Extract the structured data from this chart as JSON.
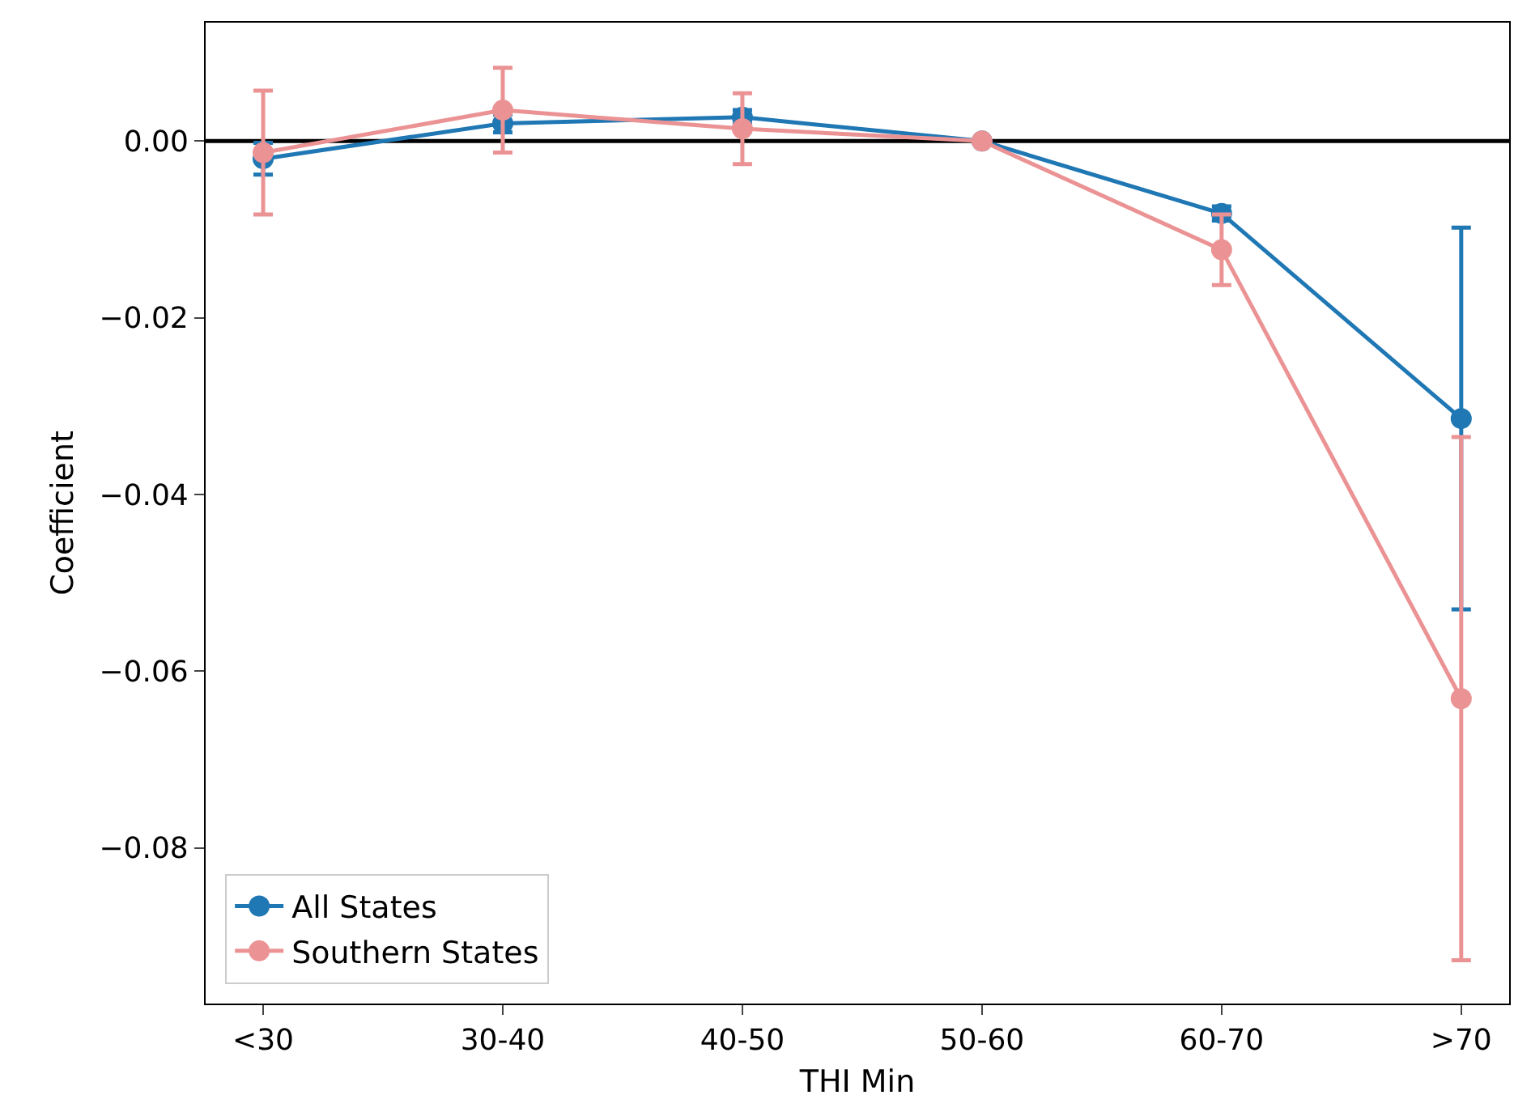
{
  "chart_data": {
    "type": "line",
    "xlabel": "THI Min",
    "ylabel": "Coefficient",
    "categories": [
      "<30",
      "30-40",
      "40-50",
      "50-60",
      "60-70",
      ">70"
    ],
    "series": [
      {
        "name": "All States",
        "color": "#1f77b4",
        "values": [
          -0.002,
          0.002,
          0.0027,
          0.0,
          -0.0082,
          -0.0314
        ],
        "errors": [
          0.0018,
          0.001,
          0.0008,
          null,
          0.0008,
          0.0216
        ]
      },
      {
        "name": "Southern States",
        "color": "#eb9394",
        "values": [
          -0.0013,
          0.0035,
          0.0014,
          0.0,
          -0.0123,
          -0.0631
        ],
        "errors": [
          0.007,
          0.0048,
          0.004,
          null,
          0.004,
          0.0296
        ]
      }
    ],
    "ylim": [
      -0.0976,
      0.0134
    ],
    "yticks": [
      {
        "value": -0.08,
        "label": "−0.08"
      },
      {
        "value": -0.06,
        "label": "−0.06"
      },
      {
        "value": -0.04,
        "label": "−0.04"
      },
      {
        "value": -0.02,
        "label": "−0.02"
      },
      {
        "value": 0,
        "label": "0.00"
      }
    ],
    "ref_lines": [
      {
        "axis": "y",
        "value": 0,
        "color": "#000000"
      }
    ],
    "grid": false,
    "legend": "bottom left",
    "marker": "circle",
    "line_style": "solid"
  }
}
